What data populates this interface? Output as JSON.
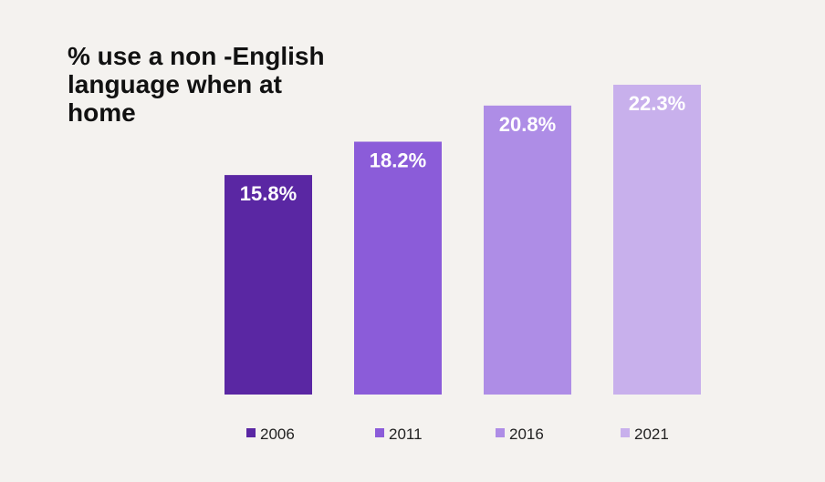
{
  "chart_data": {
    "type": "bar",
    "title": "% use a non -English\nlanguage when at\nhome",
    "categories": [
      "2006",
      "2011",
      "2016",
      "2021"
    ],
    "values": [
      15.8,
      18.2,
      20.8,
      22.3
    ],
    "data_labels": [
      "15.8%",
      "18.2%",
      "20.8%",
      "22.3%"
    ],
    "colors": [
      "#5a27a3",
      "#8b5cd9",
      "#ae8de6",
      "#c8b0ec"
    ],
    "xlabel": "",
    "ylabel": "",
    "ylim": [
      0,
      22.3
    ],
    "grid": false,
    "legend_position": "bottom"
  }
}
